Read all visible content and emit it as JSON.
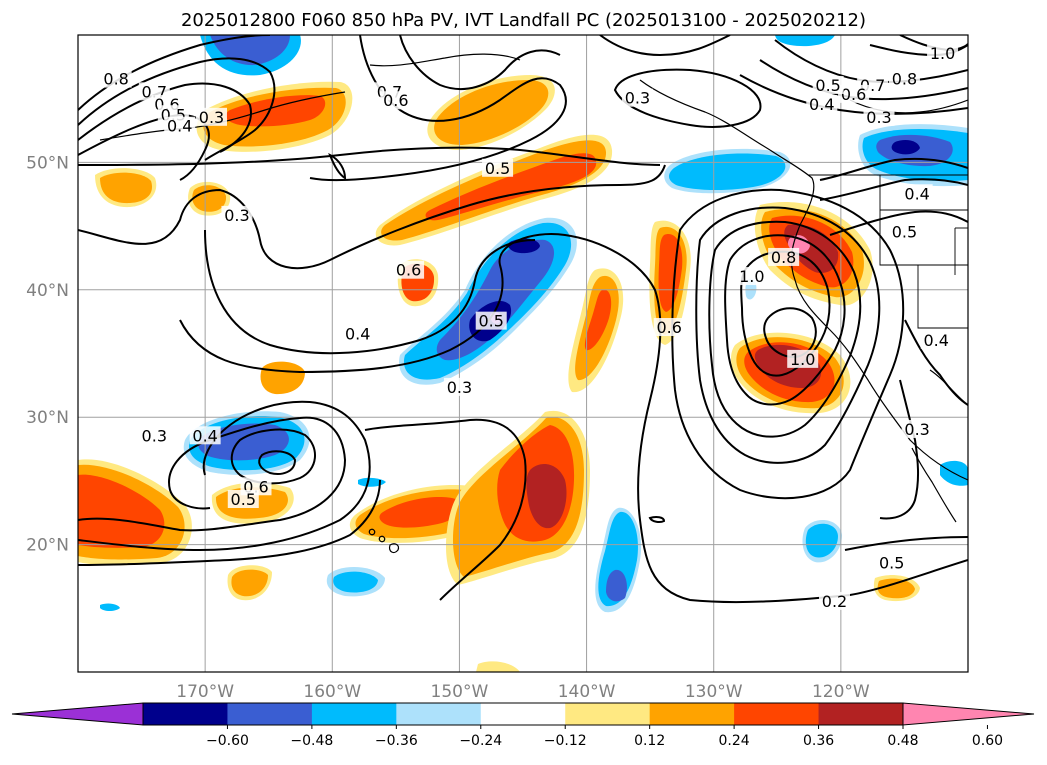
{
  "title": "2025012800 F060 850 hPa PV, IVT Landfall PC (2025013100 - 2025020212)",
  "map": {
    "lon_range": [
      -180,
      -110
    ],
    "lat_range": [
      10,
      60
    ],
    "lon_ticks": [
      {
        "value": -170,
        "label": "170°W"
      },
      {
        "value": -160,
        "label": "160°W"
      },
      {
        "value": -150,
        "label": "150°W"
      },
      {
        "value": -140,
        "label": "140°W"
      },
      {
        "value": -130,
        "label": "130°W"
      },
      {
        "value": -120,
        "label": "120°W"
      }
    ],
    "lat_ticks": [
      {
        "value": 20,
        "label": "20°N"
      },
      {
        "value": 30,
        "label": "30°N"
      },
      {
        "value": 40,
        "label": "40°N"
      },
      {
        "value": 50,
        "label": "50°N"
      }
    ],
    "grid": true,
    "contour_labels": [
      {
        "lon": -177.0,
        "lat": 56.5,
        "text": "0.8"
      },
      {
        "lon": -174.0,
        "lat": 55.5,
        "text": "0.7"
      },
      {
        "lon": -173.0,
        "lat": 54.5,
        "text": "0.6"
      },
      {
        "lon": -172.5,
        "lat": 53.7,
        "text": "0.5"
      },
      {
        "lon": -172.0,
        "lat": 52.8,
        "text": "0.4"
      },
      {
        "lon": -169.5,
        "lat": 53.5,
        "text": "0.3"
      },
      {
        "lon": -167.5,
        "lat": 45.8,
        "text": "0.3"
      },
      {
        "lon": -155.5,
        "lat": 55.5,
        "text": "0.7"
      },
      {
        "lon": -155.0,
        "lat": 54.8,
        "text": "0.6"
      },
      {
        "lon": -147.0,
        "lat": 49.5,
        "text": "0.5"
      },
      {
        "lon": -154.0,
        "lat": 41.5,
        "text": "0.6"
      },
      {
        "lon": -158.0,
        "lat": 36.5,
        "text": "0.4"
      },
      {
        "lon": -150.0,
        "lat": 32.3,
        "text": "0.3"
      },
      {
        "lon": -174.0,
        "lat": 28.5,
        "text": "0.3"
      },
      {
        "lon": -170.0,
        "lat": 28.5,
        "text": "0.4"
      },
      {
        "lon": -166.0,
        "lat": 24.5,
        "text": "0.6"
      },
      {
        "lon": -167.0,
        "lat": 23.5,
        "text": "0.5"
      },
      {
        "lon": -136.0,
        "lat": 55.0,
        "text": "0.3"
      },
      {
        "lon": -115.0,
        "lat": 56.5,
        "text": "0.8"
      },
      {
        "lon": -117.5,
        "lat": 56.0,
        "text": "0.7"
      },
      {
        "lon": -119.0,
        "lat": 55.3,
        "text": "0.6"
      },
      {
        "lon": -121.0,
        "lat": 56.0,
        "text": "0.5"
      },
      {
        "lon": -121.5,
        "lat": 54.5,
        "text": "0.4"
      },
      {
        "lon": -112.0,
        "lat": 58.5,
        "text": "1.0"
      },
      {
        "lon": -117.0,
        "lat": 53.5,
        "text": "0.3"
      },
      {
        "lon": -114.0,
        "lat": 47.5,
        "text": "0.4"
      },
      {
        "lon": -115.0,
        "lat": 44.5,
        "text": "0.5"
      },
      {
        "lon": -112.5,
        "lat": 36.0,
        "text": "0.4"
      },
      {
        "lon": -114.0,
        "lat": 29.0,
        "text": "0.3"
      },
      {
        "lon": -127.0,
        "lat": 41.0,
        "text": "1.0"
      },
      {
        "lon": -124.5,
        "lat": 42.5,
        "text": "0.8"
      },
      {
        "lon": -133.5,
        "lat": 37.0,
        "text": "0.6"
      },
      {
        "lon": -123.0,
        "lat": 34.5,
        "text": "1.0"
      },
      {
        "lon": -116.0,
        "lat": 18.5,
        "text": "0.5"
      },
      {
        "lon": -120.5,
        "lat": 15.5,
        "text": "0.2"
      },
      {
        "lon": -147.5,
        "lat": 37.5,
        "text": "0.5"
      }
    ]
  },
  "colorbar": {
    "colors": [
      "#9b30d6",
      "#00008c",
      "#3a5ed2",
      "#00bbfd",
      "#ade1fb",
      "#ffffff",
      "#ffe982",
      "#ffa300",
      "#ff4500",
      "#b22222",
      "#ff85b0"
    ],
    "ticks": [
      "−0.60",
      "−0.48",
      "−0.36",
      "−0.24",
      "−0.12",
      "0.12",
      "0.24",
      "0.36",
      "0.48",
      "0.60"
    ]
  }
}
